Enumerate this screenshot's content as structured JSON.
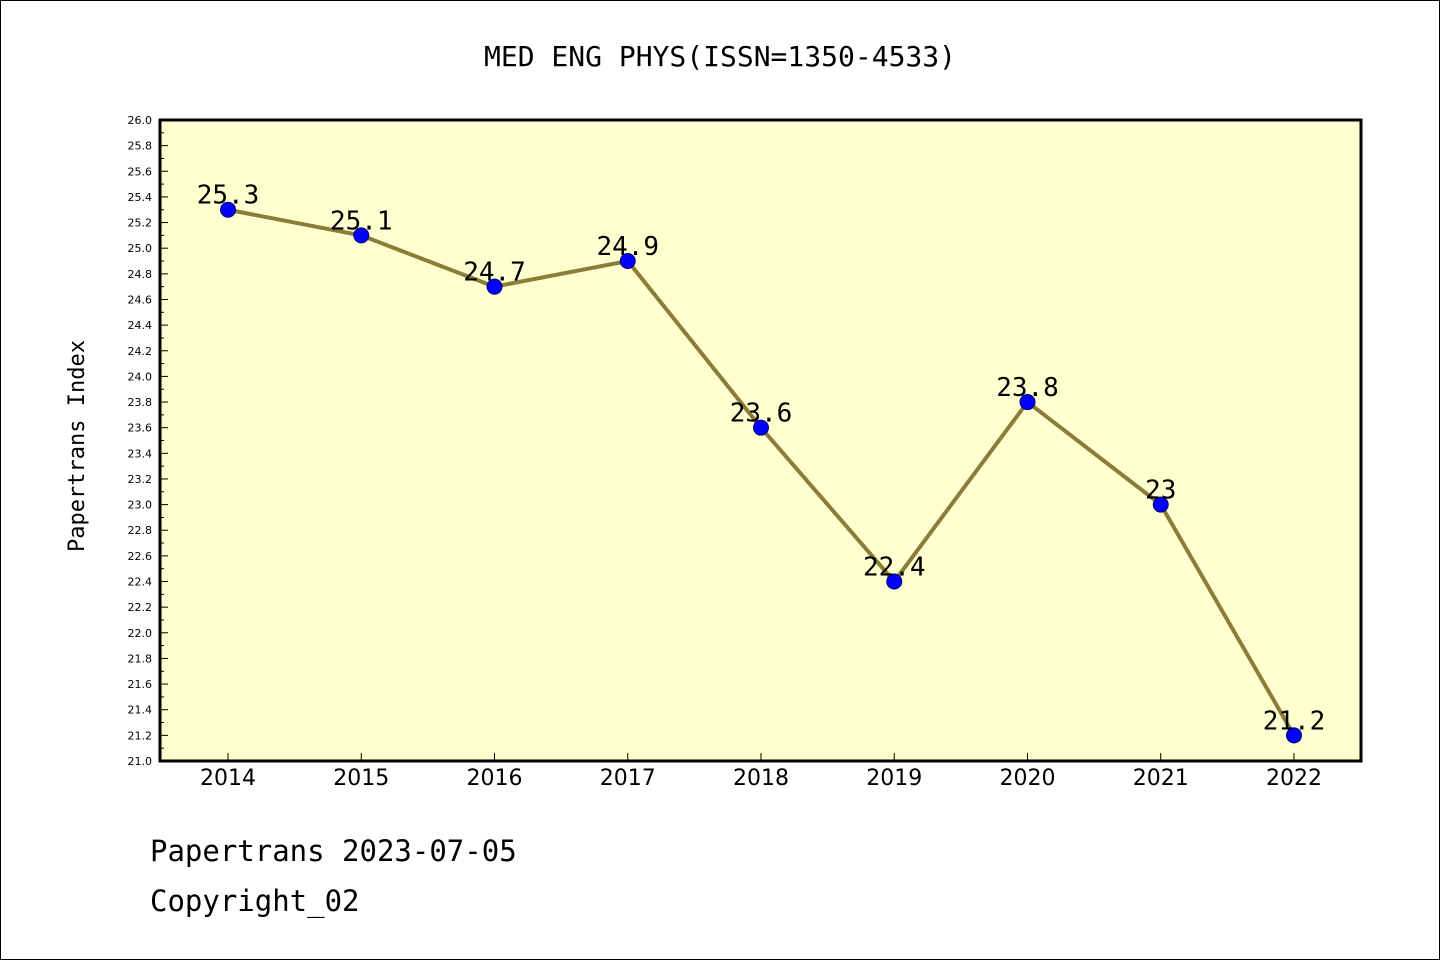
{
  "chart_data": {
    "type": "line",
    "title": "MED ENG PHYS(ISSN=1350-4533)",
    "xlabel": "",
    "ylabel": "Papertrans Index",
    "categories": [
      "2014",
      "2015",
      "2016",
      "2017",
      "2018",
      "2019",
      "2020",
      "2021",
      "2022"
    ],
    "values": [
      25.3,
      25.1,
      24.7,
      24.9,
      23.6,
      22.4,
      23.8,
      23.0,
      21.2
    ],
    "data_labels": [
      "25.3",
      "25.1",
      "24.7",
      "24.9",
      "23.6",
      "22.4",
      "23.8",
      "23",
      "21.2"
    ],
    "ylim": [
      21.0,
      26.0
    ],
    "ytick_step": 0.2,
    "grid": false,
    "colors": {
      "plot_background": "#ffffd0",
      "line": "#8b7d37",
      "marker": "#0000ff"
    }
  },
  "footer": {
    "line1": "Papertrans 2023-07-05",
    "line2": "Copyright_02"
  }
}
